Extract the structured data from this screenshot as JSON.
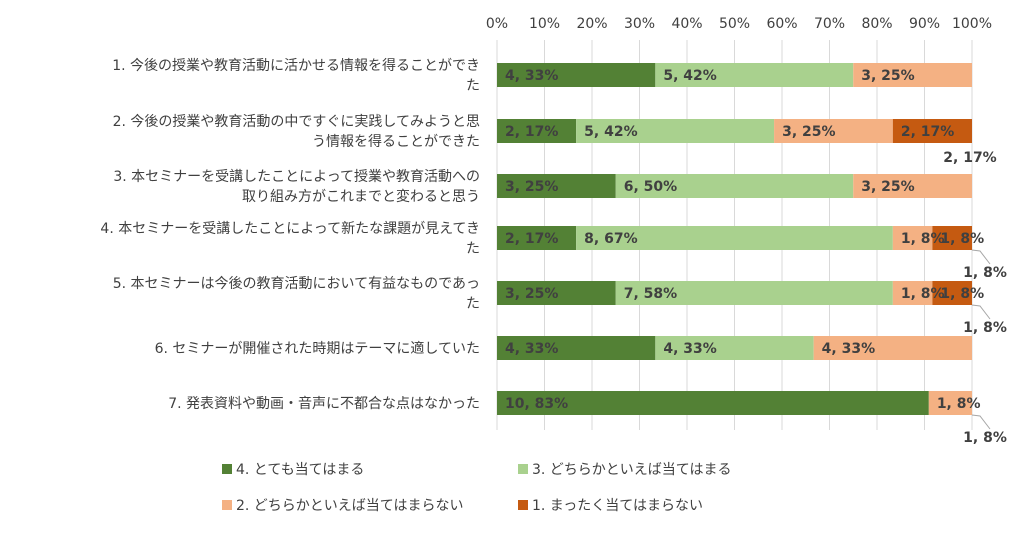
{
  "chart_data": {
    "type": "bar",
    "orientation": "horizontal",
    "stacked": true,
    "percent_stacked": true,
    "title": "",
    "xlabel": "",
    "ylabel": "",
    "xlim": [
      0,
      100
    ],
    "x_ticks": [
      "0%",
      "10%",
      "20%",
      "30%",
      "40%",
      "50%",
      "60%",
      "70%",
      "80%",
      "90%",
      "100%"
    ],
    "grid": "vertical",
    "legend_position": "bottom",
    "categories": [
      [
        "1. 今後の授業や教育活動に活かせる情報を得ることができ",
        "た"
      ],
      [
        "2. 今後の授業や教育活動の中ですぐに実践してみようと思",
        "う情報を得ることができた"
      ],
      [
        "3. 本セミナーを受講したことによって授業や教育活動への",
        "取り組み方がこれまでと変わると思う"
      ],
      [
        "4. 本セミナーを受講したことによって新たな課題が見えてき",
        "た"
      ],
      [
        "5. 本セミナーは今後の教育活動において有益なものであっ",
        "た"
      ],
      [
        "6. セミナーが開催された時期はテーマに適していた"
      ],
      [
        "7. 発表資料や動画・音声に不都合な点はなかった"
      ]
    ],
    "series": [
      {
        "name": "4. とても当てはまる",
        "color": "#538135",
        "counts": [
          4,
          2,
          3,
          2,
          3,
          4,
          10
        ],
        "values": [
          33,
          17,
          25,
          17,
          25,
          33,
          83
        ],
        "labels": [
          "4, 33%",
          "2, 17%",
          "3, 25%",
          "2, 17%",
          "3, 25%",
          "4, 33%",
          "10, 83%"
        ]
      },
      {
        "name": "3. どちらかといえば当てはまる",
        "color": "#a9d18e",
        "counts": [
          5,
          5,
          6,
          8,
          7,
          4,
          0
        ],
        "values": [
          42,
          42,
          50,
          67,
          58,
          33,
          0
        ],
        "labels": [
          "5, 42%",
          "5, 42%",
          "6, 50%",
          "8, 67%",
          "7, 58%",
          "4, 33%",
          ""
        ]
      },
      {
        "name": "2. どちらかといえば当てはまらない",
        "color": "#f4b183",
        "counts": [
          3,
          3,
          3,
          1,
          1,
          4,
          1
        ],
        "values": [
          25,
          25,
          25,
          8,
          8,
          33,
          8
        ],
        "labels": [
          "3, 25%",
          "3, 25%",
          "3, 25%",
          "1, 8%",
          "1, 8%",
          "4, 33%",
          "1, 8%"
        ]
      },
      {
        "name": "1. まったく当てはまらない",
        "color": "#c55a11",
        "counts": [
          0,
          2,
          0,
          1,
          1,
          0,
          0
        ],
        "values": [
          0,
          17,
          0,
          8,
          8,
          0,
          0
        ],
        "labels": [
          "",
          "2, 17%",
          "",
          "1, 8%",
          "1, 8%",
          "",
          ""
        ]
      }
    ],
    "outside_labels": [
      {
        "row": 1,
        "text": "2, 17%",
        "leader": false
      },
      {
        "row": 3,
        "text": "1, 8%",
        "leader": true
      },
      {
        "row": 4,
        "text": "1, 8%",
        "leader": true
      },
      {
        "row": 6,
        "text": "1, 8%",
        "leader": true
      }
    ]
  }
}
